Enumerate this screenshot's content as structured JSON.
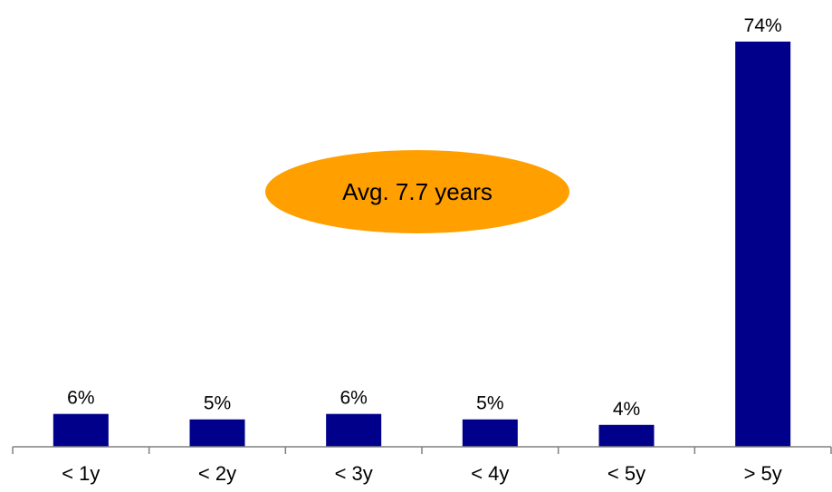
{
  "chart_data": {
    "type": "bar",
    "categories": [
      "< 1y",
      "< 2y",
      "< 3y",
      "< 4y",
      "< 5y",
      "> 5y"
    ],
    "values": [
      6,
      5,
      6,
      5,
      4,
      74
    ],
    "value_labels": [
      "6%",
      "5%",
      "6%",
      "5%",
      "4%",
      "74%"
    ],
    "ylim": [
      0,
      74
    ],
    "grid": false,
    "annotation": "Avg. 7.7 years",
    "colors": {
      "bar": "#00008B",
      "annotation_fill": "#FF9F00",
      "axis": "#808080"
    }
  }
}
